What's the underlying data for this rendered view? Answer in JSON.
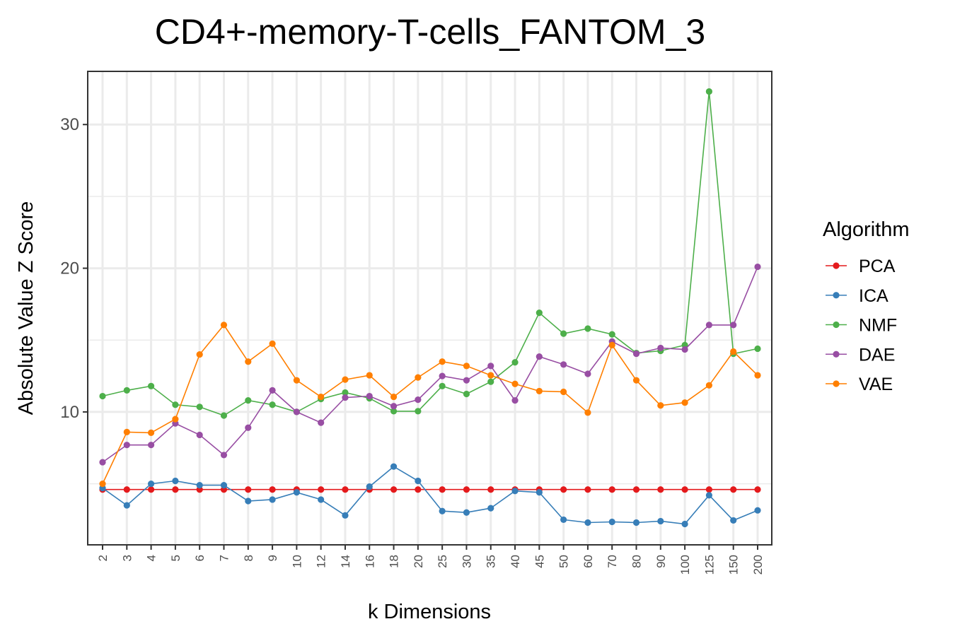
{
  "chart_data": {
    "type": "line",
    "title": "CD4+-memory-T-cells_FANTOM_3",
    "xlabel": "k Dimensions",
    "ylabel": "Absolute Value Z Score",
    "categories": [
      "2",
      "3",
      "4",
      "5",
      "6",
      "7",
      "8",
      "9",
      "10",
      "12",
      "14",
      "16",
      "18",
      "20",
      "25",
      "30",
      "35",
      "40",
      "45",
      "50",
      "60",
      "70",
      "80",
      "90",
      "100",
      "125",
      "150",
      "200"
    ],
    "yticks": [
      10,
      20,
      30
    ],
    "ylim": [
      0.75,
      33.7
    ],
    "grid": true,
    "legend": {
      "title": "Algorithm",
      "position": "right"
    },
    "series": [
      {
        "name": "PCA",
        "color": "#E41A1C",
        "values": [
          4.6,
          4.6,
          4.6,
          4.6,
          4.6,
          4.6,
          4.6,
          4.6,
          4.6,
          4.6,
          4.6,
          4.6,
          4.6,
          4.6,
          4.6,
          4.6,
          4.6,
          4.6,
          4.6,
          4.6,
          4.6,
          4.6,
          4.6,
          4.6,
          4.6,
          4.6,
          4.6,
          4.6
        ]
      },
      {
        "name": "ICA",
        "color": "#377EB8",
        "values": [
          4.7,
          3.5,
          5.0,
          5.2,
          4.9,
          4.9,
          3.8,
          3.9,
          4.4,
          3.9,
          2.8,
          4.8,
          6.2,
          5.2,
          3.1,
          3.0,
          3.3,
          4.5,
          4.4,
          2.5,
          2.3,
          2.35,
          2.3,
          2.4,
          2.2,
          4.2,
          2.45,
          3.15
        ]
      },
      {
        "name": "NMF",
        "color": "#4DAF4A",
        "values": [
          11.1,
          11.5,
          11.8,
          10.5,
          10.35,
          9.75,
          10.8,
          10.5,
          10.0,
          10.9,
          11.35,
          10.95,
          10.05,
          10.05,
          11.8,
          11.25,
          12.1,
          13.45,
          16.9,
          15.45,
          15.8,
          15.4,
          14.1,
          14.25,
          14.65,
          32.3,
          14.05,
          14.4
        ]
      },
      {
        "name": "DAE",
        "color": "#984EA3",
        "values": [
          6.5,
          7.7,
          7.7,
          9.2,
          8.4,
          7.0,
          8.9,
          11.5,
          10.0,
          9.25,
          11.0,
          11.1,
          10.4,
          10.85,
          12.5,
          12.2,
          13.2,
          10.8,
          13.85,
          13.3,
          12.65,
          14.9,
          14.05,
          14.45,
          14.35,
          16.05,
          16.05,
          20.1
        ]
      },
      {
        "name": "VAE",
        "color": "#FF7F00",
        "values": [
          5.0,
          8.6,
          8.55,
          9.5,
          14.0,
          16.05,
          13.5,
          14.75,
          12.2,
          11.05,
          12.25,
          12.55,
          11.05,
          12.4,
          13.5,
          13.2,
          12.55,
          11.95,
          11.45,
          11.4,
          9.95,
          14.65,
          12.2,
          10.45,
          10.65,
          11.85,
          14.2,
          12.55
        ]
      }
    ]
  }
}
